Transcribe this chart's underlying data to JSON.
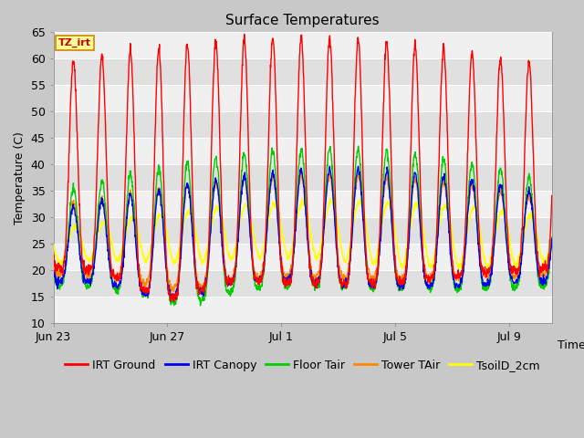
{
  "title": "Surface Temperatures",
  "xlabel": "Time",
  "ylabel": "Temperature (C)",
  "ylim": [
    10,
    65
  ],
  "yticks": [
    10,
    15,
    20,
    25,
    30,
    35,
    40,
    45,
    50,
    55,
    60,
    65
  ],
  "xtick_dates": [
    "Jun 23",
    "Jun 27",
    "Jul 1",
    "Jul 5",
    "Jul 9"
  ],
  "xtick_positions_days": [
    0,
    4,
    8,
    12,
    16
  ],
  "series": {
    "IRT Ground": {
      "color": "#ff0000",
      "lw": 1.0
    },
    "IRT Canopy": {
      "color": "#0000ee",
      "lw": 1.0
    },
    "Floor Tair": {
      "color": "#00cc00",
      "lw": 1.0
    },
    "Tower TAir": {
      "color": "#ff8800",
      "lw": 1.0
    },
    "TsoilD_2cm": {
      "color": "#ffff00",
      "lw": 1.2
    }
  },
  "annotation_text": "TZ_irt",
  "annotation_color": "#cc0000",
  "annotation_bg": "#ffff99",
  "annotation_border": "#cc8800",
  "fig_bg_color": "#c8c8c8",
  "plot_bg_light": "#f0f0f0",
  "plot_bg_dark": "#e0e0e0",
  "title_fontsize": 11,
  "axis_fontsize": 9,
  "legend_fontsize": 9,
  "n_days": 17.5,
  "points_per_day": 96
}
